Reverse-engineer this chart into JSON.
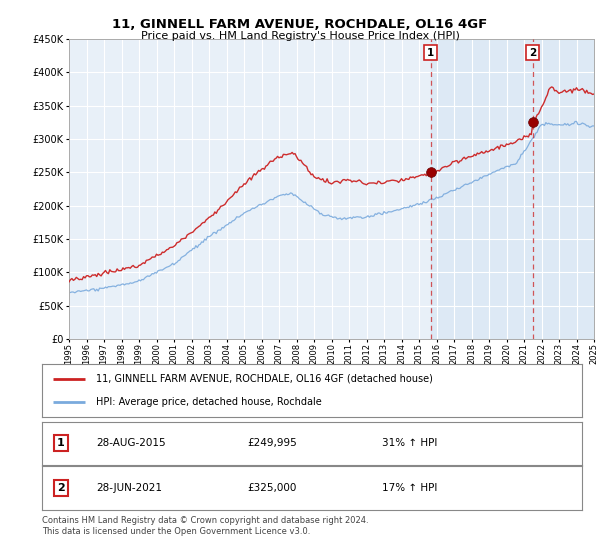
{
  "title": "11, GINNELL FARM AVENUE, ROCHDALE, OL16 4GF",
  "subtitle": "Price paid vs. HM Land Registry's House Price Index (HPI)",
  "legend_line1": "11, GINNELL FARM AVENUE, ROCHDALE, OL16 4GF (detached house)",
  "legend_line2": "HPI: Average price, detached house, Rochdale",
  "annotation1_date": "28-AUG-2015",
  "annotation1_price": "£249,995",
  "annotation1_hpi": "31% ↑ HPI",
  "annotation2_date": "28-JUN-2021",
  "annotation2_price": "£325,000",
  "annotation2_hpi": "17% ↑ HPI",
  "footer": "Contains HM Land Registry data © Crown copyright and database right 2024.\nThis data is licensed under the Open Government Licence v3.0.",
  "sale1_year": 2015.66,
  "sale1_price": 249995,
  "sale2_year": 2021.49,
  "sale2_price": 325000,
  "hpi_line_color": "#7aaadd",
  "property_line_color": "#cc2222",
  "sale_marker_color": "#990000",
  "ylim_min": 0,
  "ylim_max": 450000,
  "xlim_min": 1995,
  "xlim_max": 2025,
  "background_color": "#ffffff",
  "plot_bg_color": "#e8f0f8",
  "shade_color": "#d0e4f4"
}
